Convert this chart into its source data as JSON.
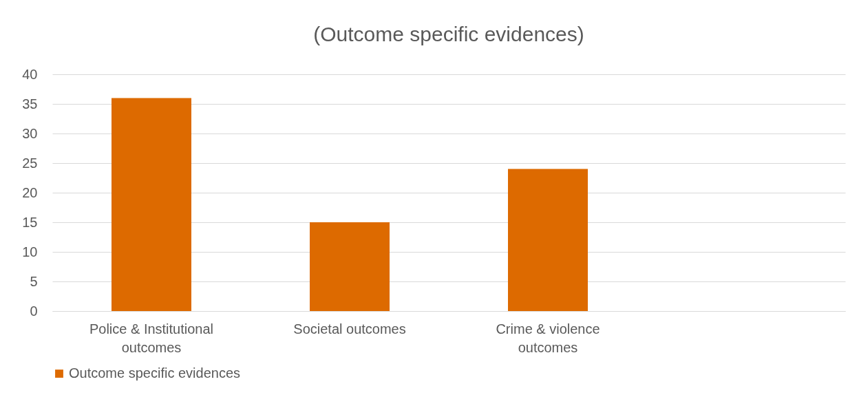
{
  "chart_data": {
    "type": "bar",
    "title": "(Outcome specific evidences)",
    "categories": [
      "Police & Institutional outcomes",
      "Societal outcomes",
      "Crime & violence outcomes",
      null
    ],
    "series": [
      {
        "name": "Outcome specific evidences",
        "color": "#dd6a00",
        "values": [
          36,
          15,
          24,
          null
        ]
      }
    ],
    "ylim": [
      0,
      40
    ],
    "yticks": [
      0,
      5,
      10,
      15,
      20,
      25,
      30,
      35,
      40
    ],
    "grid": "y",
    "legend": "bottom"
  }
}
